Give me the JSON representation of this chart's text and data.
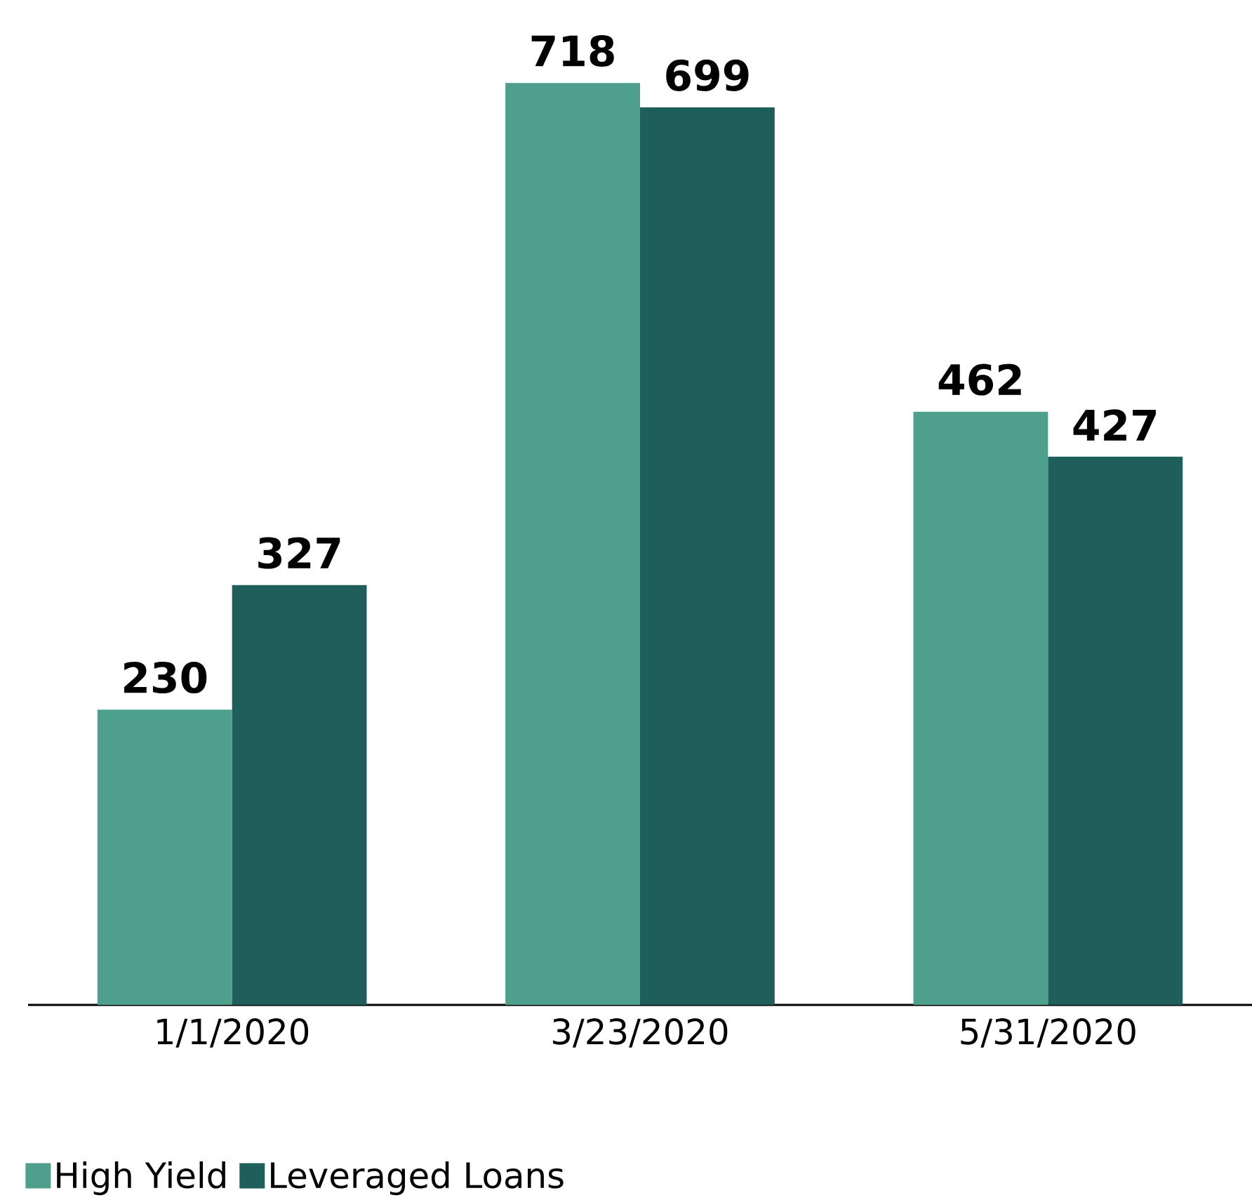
{
  "chart_data": {
    "type": "bar",
    "categories": [
      "1/1/2020",
      "3/23/2020",
      "5/31/2020"
    ],
    "series": [
      {
        "name": "High Yield",
        "color": "#4e9f8c",
        "values": [
          230,
          718,
          462
        ]
      },
      {
        "name": "Leveraged Loans",
        "color": "#1f5f5b",
        "values": [
          327,
          699,
          427
        ]
      }
    ],
    "data_labels": true,
    "legend": "bottom left"
  }
}
